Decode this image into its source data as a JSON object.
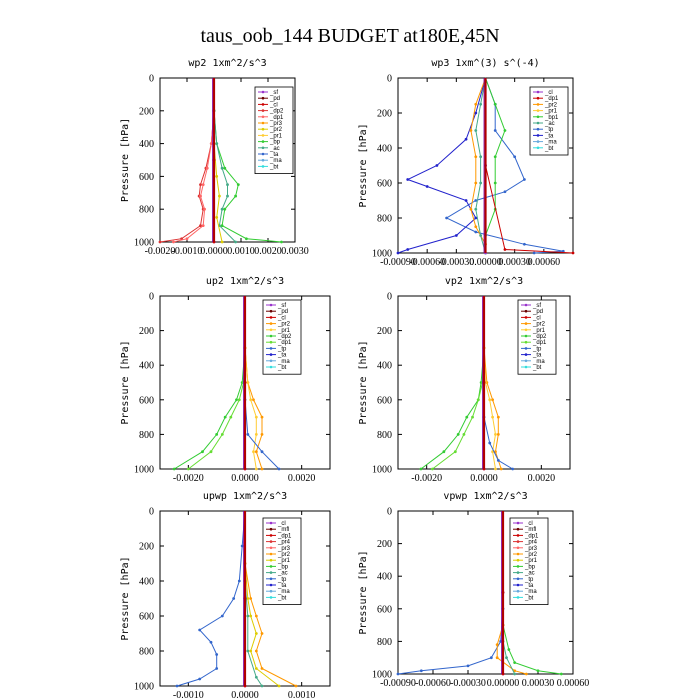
{
  "figure_title": "taus_oob_144  BUDGET at180E,45N",
  "chart_data": [
    {
      "type": "line",
      "title": "wp2  1xm^2/s^3",
      "ylabel": "Pressure [hPa]",
      "ylim": [
        1000,
        0
      ],
      "yticks": [
        "0",
        "200",
        "400",
        "600",
        "800",
        "1000"
      ],
      "xlim": [
        -0.002,
        0.003
      ],
      "xticks": [
        "-0.0020",
        "-0.0010",
        "0.0000",
        "0.0010",
        "0.0020",
        "0.0030"
      ],
      "xtick_values": [
        -0.002,
        -0.001,
        0.0,
        0.001,
        0.002,
        0.003
      ],
      "legend": [
        "_sf",
        "_pd",
        "_cl",
        "_dp2",
        "_dp1",
        "_pr3",
        "_pr2",
        "_pr1",
        "_bp",
        "_ac",
        "_ta",
        "_ma",
        "_bt"
      ],
      "colors": [
        "#9933cc",
        "#6a0000",
        "#cc0000",
        "#dd3333",
        "#ff6666",
        "#ff9900",
        "#ddcc00",
        "#ffcc33",
        "#33cc33",
        "#44aa88",
        "#3366cc",
        "#66aadd",
        "#33dddd"
      ],
      "series": [
        {
          "name": "_dp2",
          "p": [
            0,
            200,
            400,
            550,
            650,
            720,
            800,
            900,
            980,
            1000
          ],
          "values": [
            0,
            0,
            -0.0001,
            -0.0003,
            -0.0005,
            -0.00055,
            -0.0004,
            -0.0005,
            -0.0012,
            -0.002
          ]
        },
        {
          "name": "_dp1",
          "p": [
            0,
            200,
            400,
            550,
            650,
            720,
            800,
            900,
            980,
            1000
          ],
          "values": [
            0,
            0,
            -0.0001,
            -0.00025,
            -0.0004,
            -0.0005,
            -0.00035,
            -0.0004,
            -0.001,
            -0.0015
          ]
        },
        {
          "name": "_bp",
          "p": [
            0,
            200,
            400,
            550,
            650,
            720,
            800,
            900,
            980,
            1000
          ],
          "values": [
            0,
            0,
            0.0001,
            0.0004,
            0.0009,
            0.0008,
            0.0004,
            0.0003,
            0.0012,
            0.0025
          ]
        },
        {
          "name": "_ac",
          "p": [
            0,
            200,
            400,
            550,
            650,
            720,
            800,
            900,
            1000
          ],
          "values": [
            0,
            0,
            0.0001,
            0.0003,
            0.0005,
            0.0005,
            0.0003,
            0.0002,
            0.0008
          ]
        },
        {
          "name": "_pr2",
          "p": [
            0,
            400,
            600,
            720,
            850,
            1000
          ],
          "values": [
            0,
            0,
            0.0001,
            0.0002,
            0.0001,
            0.0003
          ]
        },
        {
          "name": "_sf",
          "p": [
            0,
            500,
            1000
          ],
          "values": [
            0,
            0,
            0
          ]
        },
        {
          "name": "_cl",
          "p": [
            0,
            500,
            1000
          ],
          "values": [
            0,
            0,
            0
          ]
        }
      ]
    },
    {
      "type": "line",
      "title": "wp3  1xm^(3) s^(-4)",
      "ylabel": "Pressure [hPa]",
      "ylim": [
        1000,
        0
      ],
      "yticks": [
        "0",
        "200",
        "400",
        "600",
        "800",
        "1000"
      ],
      "xlim": [
        -0.0009,
        0.0009
      ],
      "xticks": [
        "-0.00090",
        "-0.00060",
        "-0.00030",
        "0.00000",
        "0.00030",
        "0.00060"
      ],
      "xtick_values": [
        -0.0009,
        -0.0006,
        -0.0003,
        0.0,
        0.0003,
        0.0006
      ],
      "legend": [
        "_cl",
        "_dp1",
        "_pr2",
        "_pr1",
        "_bp1",
        "_ac",
        "_tp",
        "_ta",
        "_ma",
        "_bt"
      ],
      "colors": [
        "#9933cc",
        "#cc0000",
        "#ff9900",
        "#ffcc33",
        "#33cc33",
        "#44aa88",
        "#3366cc",
        "#2222cc",
        "#66aadd",
        "#33dddd"
      ],
      "series": [
        {
          "name": "_tp",
          "p": [
            0,
            150,
            300,
            450,
            580,
            650,
            700,
            800,
            880,
            950,
            990,
            1000
          ],
          "values": [
            0,
            0.0001,
            0.0001,
            0.0003,
            0.0004,
            0.0002,
            -0.0001,
            -0.0004,
            -0.0001,
            0.0004,
            0.0008,
            0.0005
          ]
        },
        {
          "name": "_ta",
          "p": [
            0,
            200,
            350,
            500,
            580,
            620,
            700,
            800,
            900,
            980,
            1000
          ],
          "values": [
            0,
            -0.0001,
            -0.0002,
            -0.0005,
            -0.0008,
            -0.0006,
            -0.0002,
            -0.0001,
            -0.0003,
            -0.0008,
            -0.0009
          ]
        },
        {
          "name": "_pr2",
          "p": [
            0,
            150,
            300,
            450,
            600,
            750,
            850,
            950,
            1000
          ],
          "values": [
            0,
            -0.0001,
            -0.00015,
            -0.0001,
            -0.0001,
            -0.00015,
            -0.0001,
            0,
            0
          ]
        },
        {
          "name": "_bp1",
          "p": [
            0,
            150,
            300,
            450,
            600,
            750,
            900,
            1000
          ],
          "values": [
            0,
            0.0001,
            0.0002,
            0.0001,
            0.0001,
            0.0001,
            0,
            0
          ]
        },
        {
          "name": "_ac",
          "p": [
            0,
            150,
            300,
            450,
            600,
            750,
            900,
            1000
          ],
          "values": [
            0,
            -5e-05,
            -0.0001,
            -5e-05,
            -5e-05,
            -0.0001,
            -5e-05,
            0
          ]
        },
        {
          "name": "_dp1",
          "p": [
            0,
            500,
            980,
            1000
          ],
          "values": [
            0,
            0,
            0.0002,
            0.0009
          ]
        },
        {
          "name": "_cl",
          "p": [
            0,
            500,
            1000
          ],
          "values": [
            0,
            0,
            0
          ]
        }
      ]
    },
    {
      "type": "line",
      "title": "up2  1xm^2/s^3",
      "ylabel": "Pressure [hPa]",
      "ylim": [
        1000,
        0
      ],
      "yticks": [
        "0",
        "200",
        "400",
        "600",
        "800",
        "1000"
      ],
      "xlim": [
        -0.003,
        0.003
      ],
      "xticks": [
        "-0.0020",
        "0.0000",
        "0.0020"
      ],
      "xtick_values": [
        -0.002,
        0.0,
        0.002
      ],
      "legend": [
        "_sf",
        "_pd",
        "_cl",
        "_pr2",
        "_pr1",
        "_dp2",
        "_dp1",
        "_tp",
        "_ta",
        "_ma",
        "_bt"
      ],
      "colors": [
        "#9933cc",
        "#6a0000",
        "#cc0000",
        "#ff9900",
        "#ffcc33",
        "#33cc33",
        "#66dd33",
        "#3366cc",
        "#2222cc",
        "#66aadd",
        "#33dddd"
      ],
      "series": [
        {
          "name": "_dp2",
          "p": [
            0,
            300,
            500,
            600,
            700,
            800,
            900,
            1000
          ],
          "values": [
            0,
            0,
            -0.0001,
            -0.0003,
            -0.0007,
            -0.001,
            -0.0015,
            -0.0025
          ]
        },
        {
          "name": "_dp1",
          "p": [
            0,
            300,
            500,
            600,
            700,
            800,
            900,
            1000
          ],
          "values": [
            0,
            0,
            -5e-05,
            -0.0002,
            -0.0005,
            -0.0008,
            -0.0012,
            -0.002
          ]
        },
        {
          "name": "_pr2",
          "p": [
            0,
            300,
            500,
            600,
            700,
            800,
            900,
            1000
          ],
          "values": [
            0,
            0,
            0.0001,
            0.0003,
            0.0006,
            0.0006,
            0.0004,
            0.0006
          ]
        },
        {
          "name": "_pr1",
          "p": [
            0,
            300,
            500,
            600,
            700,
            800,
            900,
            1000
          ],
          "values": [
            0,
            0,
            0.0001,
            0.0002,
            0.0004,
            0.0004,
            0.0003,
            0.0004
          ]
        },
        {
          "name": "_tp",
          "p": [
            0,
            600,
            800,
            900,
            1000
          ],
          "values": [
            0,
            0,
            0.0001,
            0.0006,
            0.0012
          ]
        },
        {
          "name": "_sf",
          "p": [
            0,
            500,
            1000
          ],
          "values": [
            0,
            0,
            0
          ]
        },
        {
          "name": "_cl",
          "p": [
            0,
            500,
            1000
          ],
          "values": [
            0,
            0,
            0
          ]
        }
      ]
    },
    {
      "type": "line",
      "title": "vp2  1xm^2/s^3",
      "ylabel": "Pressure [hPa]",
      "ylim": [
        1000,
        0
      ],
      "yticks": [
        "0",
        "200",
        "400",
        "600",
        "800",
        "1000"
      ],
      "xlim": [
        -0.003,
        0.003
      ],
      "xticks": [
        "-0.0020",
        "0.0000",
        "0.0020"
      ],
      "xtick_values": [
        -0.002,
        0.0,
        0.002
      ],
      "legend": [
        "_sf",
        "_pd",
        "_cl",
        "_pr2",
        "_pr1",
        "_dp2",
        "_dp1",
        "_tp",
        "_ta",
        "_ma",
        "_bt"
      ],
      "colors": [
        "#9933cc",
        "#6a0000",
        "#cc0000",
        "#ff9900",
        "#ffcc33",
        "#33cc33",
        "#66dd33",
        "#3366cc",
        "#2222cc",
        "#66aadd",
        "#33dddd"
      ],
      "series": [
        {
          "name": "_dp2",
          "p": [
            0,
            300,
            500,
            600,
            700,
            800,
            900,
            1000
          ],
          "values": [
            0,
            0,
            -0.0001,
            -0.0002,
            -0.0006,
            -0.0009,
            -0.0014,
            -0.0022
          ]
        },
        {
          "name": "_dp1",
          "p": [
            0,
            300,
            500,
            600,
            700,
            800,
            900,
            1000
          ],
          "values": [
            0,
            0,
            -5e-05,
            -0.0002,
            -0.0004,
            -0.0007,
            -0.001,
            -0.0018
          ]
        },
        {
          "name": "_pr2",
          "p": [
            0,
            300,
            500,
            600,
            700,
            800,
            900,
            1000
          ],
          "values": [
            0,
            0,
            0.0001,
            0.0003,
            0.0005,
            0.0005,
            0.0004,
            0.0006
          ]
        },
        {
          "name": "_pr1",
          "p": [
            0,
            300,
            500,
            600,
            700,
            800,
            900,
            1000
          ],
          "values": [
            0,
            0,
            5e-05,
            0.0002,
            0.0003,
            0.0004,
            0.0003,
            0.0004
          ]
        },
        {
          "name": "_tp",
          "p": [
            0,
            700,
            850,
            950,
            1000
          ],
          "values": [
            0,
            0,
            0.0002,
            0.0005,
            0.001
          ]
        },
        {
          "name": "_sf",
          "p": [
            0,
            500,
            1000
          ],
          "values": [
            0,
            0,
            0
          ]
        },
        {
          "name": "_cl",
          "p": [
            0,
            500,
            1000
          ],
          "values": [
            0,
            0,
            0
          ]
        }
      ]
    },
    {
      "type": "line",
      "title": "upwp  1xm^2/s^3",
      "ylabel": "Pressure [hPa]",
      "ylim": [
        1000,
        0
      ],
      "yticks": [
        "0",
        "200",
        "400",
        "600",
        "800",
        "1000"
      ],
      "xlim": [
        -0.0015,
        0.0015
      ],
      "xticks": [
        "-0.0010",
        "0.0000",
        "0.0010"
      ],
      "xtick_values": [
        -0.001,
        0.0,
        0.001
      ],
      "legend": [
        "_cl",
        "_mfl",
        "_dp1",
        "_pr4",
        "_pr3",
        "_pr2",
        "_pr1",
        "_bp",
        "_ac",
        "_tp",
        "_ta",
        "_ma",
        "_bt"
      ],
      "colors": [
        "#9933cc",
        "#6a0000",
        "#cc0000",
        "#dd3333",
        "#ff6666",
        "#ff9900",
        "#ddcc00",
        "#33cc33",
        "#44aa88",
        "#3366cc",
        "#2222cc",
        "#66aadd",
        "#33dddd"
      ],
      "series": [
        {
          "name": "_tp",
          "p": [
            0,
            200,
            400,
            500,
            600,
            680,
            750,
            820,
            900,
            960,
            1000
          ],
          "values": [
            0,
            -5e-05,
            -0.0001,
            -0.0002,
            -0.0004,
            -0.0008,
            -0.0006,
            -0.0005,
            -0.0005,
            -0.0008,
            -0.0012
          ]
        },
        {
          "name": "_pr2",
          "p": [
            0,
            300,
            500,
            600,
            700,
            800,
            900,
            1000
          ],
          "values": [
            0,
            0,
            0.0001,
            0.0002,
            0.0003,
            0.0002,
            0.0003,
            0.0009
          ]
        },
        {
          "name": "_pr1",
          "p": [
            0,
            300,
            500,
            600,
            700,
            800,
            900,
            1000
          ],
          "values": [
            0,
            0,
            5e-05,
            0.0001,
            0.0002,
            0.0001,
            0.0002,
            0.0006
          ]
        },
        {
          "name": "_ac",
          "p": [
            0,
            400,
            600,
            800,
            950,
            1000
          ],
          "values": [
            0,
            0,
            5e-05,
            5e-05,
            0.0002,
            0.0003
          ]
        },
        {
          "name": "_cl",
          "p": [
            0,
            500,
            1000
          ],
          "values": [
            0,
            0,
            0
          ]
        },
        {
          "name": "_dp1",
          "p": [
            0,
            500,
            1000
          ],
          "values": [
            0,
            0,
            0
          ]
        }
      ]
    },
    {
      "type": "line",
      "title": "vpwp  1xm^2/s^3",
      "ylabel": "Pressure [hPa]",
      "ylim": [
        1000,
        0
      ],
      "yticks": [
        "0",
        "200",
        "400",
        "600",
        "800",
        "1000"
      ],
      "xlim": [
        -0.0009,
        0.0006
      ],
      "xticks": [
        "-0.00090",
        "-0.00060",
        "-0.00030",
        "0.00000",
        "0.00030",
        "0.00060"
      ],
      "xtick_values": [
        -0.0009,
        -0.0006,
        -0.0003,
        0.0,
        0.0003,
        0.0006
      ],
      "legend": [
        "_cl",
        "_mfl",
        "_dp1",
        "_pr4",
        "_pr3",
        "_pr2",
        "_pr1",
        "_bp",
        "_ac",
        "_tp",
        "_ta",
        "_ma",
        "_bt"
      ],
      "colors": [
        "#9933cc",
        "#6a0000",
        "#cc0000",
        "#dd3333",
        "#ff6666",
        "#ff9900",
        "#ddcc00",
        "#33cc33",
        "#44aa88",
        "#3366cc",
        "#2222cc",
        "#66aadd",
        "#33dddd"
      ],
      "series": [
        {
          "name": "_tp",
          "p": [
            0,
            600,
            800,
            900,
            950,
            980,
            1000
          ],
          "values": [
            0,
            0,
            -2e-05,
            -0.0001,
            -0.0003,
            -0.0007,
            -0.0009
          ]
        },
        {
          "name": "_bp",
          "p": [
            0,
            700,
            850,
            930,
            980,
            1000
          ],
          "values": [
            0,
            0,
            5e-05,
            0.0001,
            0.0003,
            0.0005
          ]
        },
        {
          "name": "_pr2",
          "p": [
            0,
            700,
            820,
            900,
            980,
            1000
          ],
          "values": [
            0,
            0,
            -5e-05,
            -5e-05,
            0.0001,
            0.0002
          ]
        },
        {
          "name": "_ac",
          "p": [
            0,
            800,
            900,
            1000
          ],
          "values": [
            0,
            0,
            3e-05,
            0.0001
          ]
        },
        {
          "name": "_cl",
          "p": [
            0,
            500,
            1000
          ],
          "values": [
            0,
            0,
            0
          ]
        },
        {
          "name": "_dp1",
          "p": [
            0,
            500,
            1000
          ],
          "values": [
            0,
            0,
            0
          ]
        }
      ]
    }
  ]
}
